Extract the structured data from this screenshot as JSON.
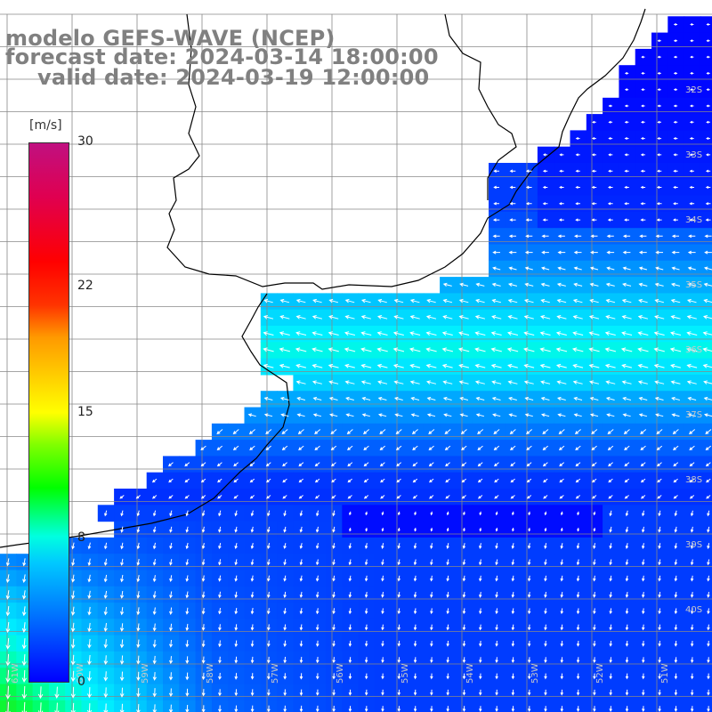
{
  "title": {
    "model": "modelo GEFS-WAVE (NCEP)",
    "forecast": "forecast date: 2024-03-14 18:00:00",
    "valid": "valid date: 2024-03-19 12:00:00"
  },
  "colorbar": {
    "unit": "[m/s]",
    "ticks": [
      "30",
      "22",
      "15",
      "8",
      "0"
    ],
    "tick_values": [
      30,
      22,
      15,
      8,
      0
    ],
    "min": 0,
    "max": 30
  },
  "map": {
    "variable": "wind speed",
    "lat_labels": [
      "32S",
      "33S",
      "34S",
      "35S",
      "36S",
      "37S",
      "38S",
      "39S",
      "40S"
    ],
    "lon_labels": [
      "61W",
      "60W",
      "59W",
      "58W",
      "57W",
      "56W",
      "55W",
      "54W",
      "53W",
      "52W",
      "51W"
    ],
    "colors": {
      "land": "#ffffff",
      "coast": "#000000",
      "grid": "#808080",
      "vectors": "#ffffff"
    }
  }
}
